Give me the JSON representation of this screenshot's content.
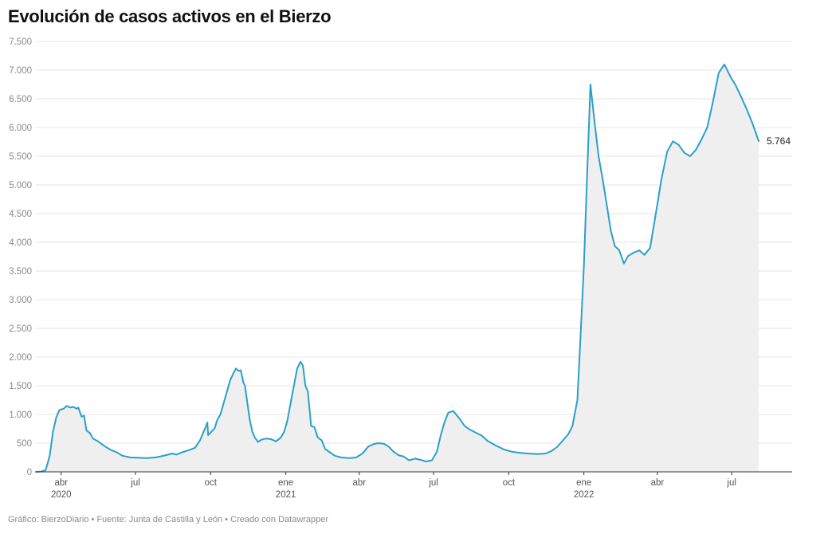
{
  "title": "Evolución de casos activos en el Bierzo",
  "footer": "Gráfico: BierzoDiario • Fuente: Junta de Castilla y León • Creado con Datawrapper",
  "end_label": "5.764",
  "colors": {
    "line": "#2aa0c9",
    "area": "#efefef",
    "grid": "#e4e4e4",
    "axis": "#333333"
  },
  "chart_data": {
    "type": "area",
    "title": "Evolución de casos activos en el Bierzo",
    "xlabel": "",
    "ylabel": "",
    "ylim": [
      0,
      7500
    ],
    "y_ticks": [
      {
        "value": 0,
        "label": "0"
      },
      {
        "value": 500,
        "label": "500"
      },
      {
        "value": 1000,
        "label": "1.000"
      },
      {
        "value": 1500,
        "label": "1.500"
      },
      {
        "value": 2000,
        "label": "2.000"
      },
      {
        "value": 2500,
        "label": "2.500"
      },
      {
        "value": 3000,
        "label": "3.000"
      },
      {
        "value": 3500,
        "label": "3.500"
      },
      {
        "value": 4000,
        "label": "4.000"
      },
      {
        "value": 4500,
        "label": "4.500"
      },
      {
        "value": 5000,
        "label": "5.000"
      },
      {
        "value": 5500,
        "label": "5.500"
      },
      {
        "value": 6000,
        "label": "6.000"
      },
      {
        "value": 6500,
        "label": "6.500"
      },
      {
        "value": 7000,
        "label": "7.000"
      },
      {
        "value": 7500,
        "label": "7.500"
      }
    ],
    "x_ticks": [
      {
        "date": "2020-04-01",
        "label": "abr",
        "year": "2020"
      },
      {
        "date": "2020-07-01",
        "label": "jul",
        "year": ""
      },
      {
        "date": "2020-10-01",
        "label": "oct",
        "year": ""
      },
      {
        "date": "2021-01-01",
        "label": "ene",
        "year": "2021"
      },
      {
        "date": "2021-04-01",
        "label": "abr",
        "year": ""
      },
      {
        "date": "2021-07-01",
        "label": "jul",
        "year": ""
      },
      {
        "date": "2021-10-01",
        "label": "oct",
        "year": ""
      },
      {
        "date": "2022-01-01",
        "label": "ene",
        "year": "2022"
      },
      {
        "date": "2022-04-01",
        "label": "abr",
        "year": ""
      },
      {
        "date": "2022-07-01",
        "label": "jul",
        "year": ""
      }
    ],
    "xlim": [
      "2020-03-01",
      "2022-09-13"
    ],
    "series": [
      {
        "points": [
          [
            "2020-03-01",
            0
          ],
          [
            "2020-03-08",
            5
          ],
          [
            "2020-03-13",
            30
          ],
          [
            "2020-03-18",
            280
          ],
          [
            "2020-03-22",
            700
          ],
          [
            "2020-03-26",
            950
          ],
          [
            "2020-03-30",
            1080
          ],
          [
            "2020-04-04",
            1100
          ],
          [
            "2020-04-08",
            1150
          ],
          [
            "2020-04-12",
            1120
          ],
          [
            "2020-04-16",
            1130
          ],
          [
            "2020-04-20",
            1100
          ],
          [
            "2020-04-22",
            1120
          ],
          [
            "2020-04-26",
            960
          ],
          [
            "2020-04-29",
            980
          ],
          [
            "2020-05-02",
            720
          ],
          [
            "2020-05-06",
            680
          ],
          [
            "2020-05-10",
            580
          ],
          [
            "2020-05-15",
            540
          ],
          [
            "2020-05-20",
            490
          ],
          [
            "2020-05-25",
            440
          ],
          [
            "2020-06-01",
            380
          ],
          [
            "2020-06-08",
            340
          ],
          [
            "2020-06-15",
            280
          ],
          [
            "2020-06-25",
            250
          ],
          [
            "2020-07-05",
            245
          ],
          [
            "2020-07-15",
            240
          ],
          [
            "2020-07-25",
            250
          ],
          [
            "2020-08-01",
            270
          ],
          [
            "2020-08-10",
            300
          ],
          [
            "2020-08-15",
            320
          ],
          [
            "2020-08-20",
            300
          ],
          [
            "2020-08-27",
            340
          ],
          [
            "2020-09-05",
            380
          ],
          [
            "2020-09-12",
            420
          ],
          [
            "2020-09-18",
            550
          ],
          [
            "2020-09-24",
            750
          ],
          [
            "2020-09-27",
            860
          ],
          [
            "2020-09-28",
            640
          ],
          [
            "2020-10-02",
            700
          ],
          [
            "2020-10-06",
            760
          ],
          [
            "2020-10-09",
            900
          ],
          [
            "2020-10-13",
            1000
          ],
          [
            "2020-10-17",
            1200
          ],
          [
            "2020-10-21",
            1400
          ],
          [
            "2020-10-25",
            1600
          ],
          [
            "2020-10-29",
            1720
          ],
          [
            "2020-11-01",
            1800
          ],
          [
            "2020-11-04",
            1760
          ],
          [
            "2020-11-07",
            1770
          ],
          [
            "2020-11-10",
            1560
          ],
          [
            "2020-11-12",
            1500
          ],
          [
            "2020-11-15",
            1200
          ],
          [
            "2020-11-18",
            900
          ],
          [
            "2020-11-21",
            700
          ],
          [
            "2020-11-24",
            600
          ],
          [
            "2020-11-28",
            520
          ],
          [
            "2020-12-02",
            560
          ],
          [
            "2020-12-08",
            580
          ],
          [
            "2020-12-14",
            570
          ],
          [
            "2020-12-20",
            530
          ],
          [
            "2020-12-26",
            600
          ],
          [
            "2020-12-30",
            700
          ],
          [
            "2021-01-03",
            900
          ],
          [
            "2021-01-07",
            1200
          ],
          [
            "2021-01-11",
            1500
          ],
          [
            "2021-01-15",
            1800
          ],
          [
            "2021-01-19",
            1920
          ],
          [
            "2021-01-22",
            1850
          ],
          [
            "2021-01-25",
            1500
          ],
          [
            "2021-01-28",
            1400
          ],
          [
            "2021-02-01",
            800
          ],
          [
            "2021-02-05",
            780
          ],
          [
            "2021-02-09",
            600
          ],
          [
            "2021-02-14",
            550
          ],
          [
            "2021-02-18",
            400
          ],
          [
            "2021-02-24",
            340
          ],
          [
            "2021-03-02",
            280
          ],
          [
            "2021-03-10",
            250
          ],
          [
            "2021-03-20",
            240
          ],
          [
            "2021-03-28",
            250
          ],
          [
            "2021-04-05",
            320
          ],
          [
            "2021-04-12",
            440
          ],
          [
            "2021-04-18",
            480
          ],
          [
            "2021-04-24",
            500
          ],
          [
            "2021-05-01",
            490
          ],
          [
            "2021-05-07",
            440
          ],
          [
            "2021-05-13",
            350
          ],
          [
            "2021-05-19",
            290
          ],
          [
            "2021-05-25",
            270
          ],
          [
            "2021-06-01",
            200
          ],
          [
            "2021-06-08",
            230
          ],
          [
            "2021-06-15",
            210
          ],
          [
            "2021-06-22",
            180
          ],
          [
            "2021-06-29",
            200
          ],
          [
            "2021-07-05",
            350
          ],
          [
            "2021-07-10",
            650
          ],
          [
            "2021-07-14",
            850
          ],
          [
            "2021-07-19",
            1030
          ],
          [
            "2021-07-25",
            1060
          ],
          [
            "2021-08-01",
            940
          ],
          [
            "2021-08-08",
            800
          ],
          [
            "2021-08-15",
            730
          ],
          [
            "2021-08-22",
            680
          ],
          [
            "2021-08-29",
            630
          ],
          [
            "2021-09-05",
            540
          ],
          [
            "2021-09-15",
            460
          ],
          [
            "2021-09-25",
            390
          ],
          [
            "2021-10-05",
            350
          ],
          [
            "2021-10-15",
            330
          ],
          [
            "2021-10-25",
            320
          ],
          [
            "2021-11-05",
            310
          ],
          [
            "2021-11-15",
            320
          ],
          [
            "2021-11-22",
            360
          ],
          [
            "2021-11-29",
            430
          ],
          [
            "2021-12-06",
            540
          ],
          [
            "2021-12-13",
            660
          ],
          [
            "2021-12-18",
            800
          ],
          [
            "2021-12-24",
            1250
          ],
          [
            "2021-12-28",
            2400
          ],
          [
            "2022-01-01",
            3600
          ],
          [
            "2022-01-05",
            5200
          ],
          [
            "2022-01-09",
            6750
          ],
          [
            "2022-01-14",
            6100
          ],
          [
            "2022-01-19",
            5500
          ],
          [
            "2022-01-24",
            5100
          ],
          [
            "2022-01-29",
            4650
          ],
          [
            "2022-02-03",
            4200
          ],
          [
            "2022-02-08",
            3930
          ],
          [
            "2022-02-13",
            3870
          ],
          [
            "2022-02-19",
            3630
          ],
          [
            "2022-02-24",
            3760
          ],
          [
            "2022-03-03",
            3820
          ],
          [
            "2022-03-10",
            3860
          ],
          [
            "2022-03-16",
            3780
          ],
          [
            "2022-03-23",
            3900
          ],
          [
            "2022-03-30",
            4500
          ],
          [
            "2022-04-06",
            5100
          ],
          [
            "2022-04-13",
            5580
          ],
          [
            "2022-04-20",
            5760
          ],
          [
            "2022-04-27",
            5700
          ],
          [
            "2022-05-04",
            5560
          ],
          [
            "2022-05-11",
            5500
          ],
          [
            "2022-05-18",
            5610
          ],
          [
            "2022-05-25",
            5790
          ],
          [
            "2022-06-01",
            6000
          ],
          [
            "2022-06-08",
            6450
          ],
          [
            "2022-06-15",
            6950
          ],
          [
            "2022-06-22",
            7100
          ],
          [
            "2022-06-29",
            6900
          ],
          [
            "2022-07-06",
            6730
          ],
          [
            "2022-07-13",
            6520
          ],
          [
            "2022-07-20",
            6300
          ],
          [
            "2022-07-27",
            6050
          ],
          [
            "2022-08-03",
            5764
          ]
        ]
      }
    ],
    "annotations": [
      {
        "text": "5.764",
        "at": "last-point"
      }
    ],
    "grid": true,
    "legend": "none"
  }
}
